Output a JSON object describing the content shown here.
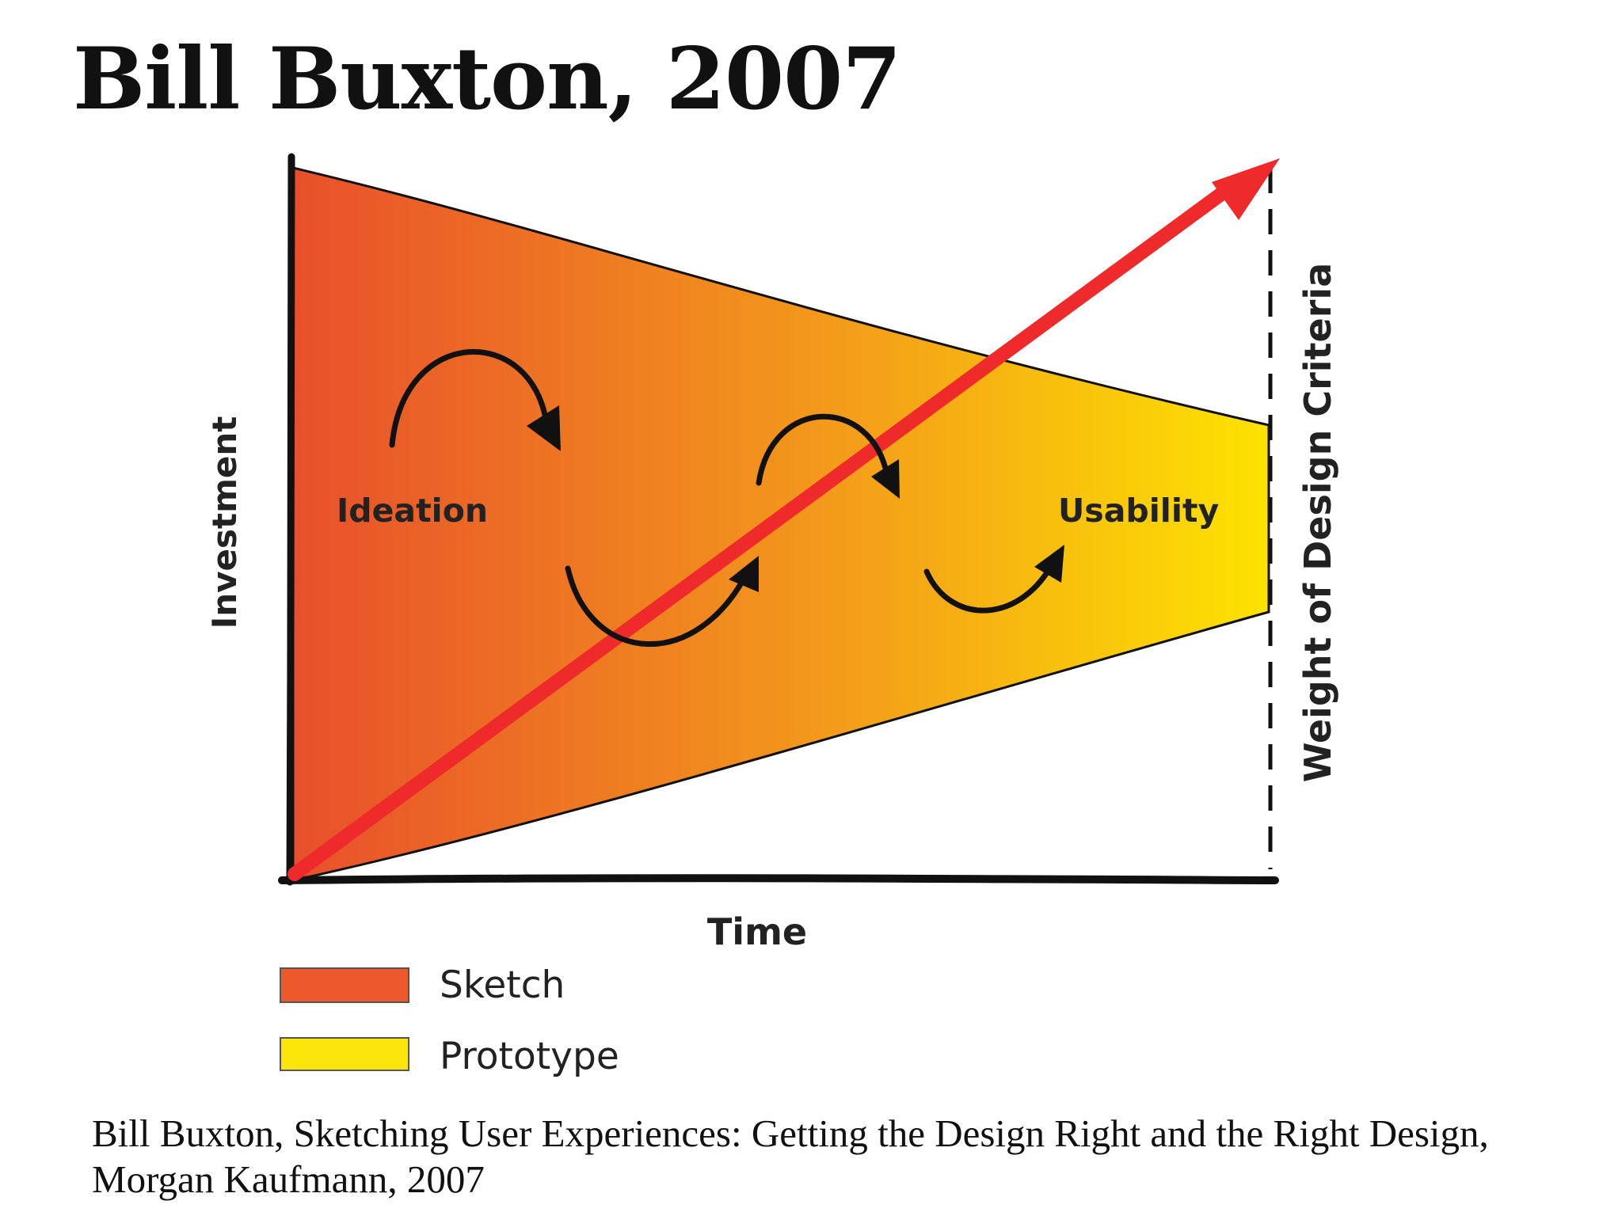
{
  "title": "Bill Buxton, 2007",
  "diagram": {
    "axes": {
      "y_label": "Investment",
      "x_label": "Time",
      "right_label": "Weight of Design Criteria"
    },
    "stage_labels": {
      "left": "Ideation",
      "right": "Usability"
    },
    "legend": [
      {
        "label": "Sketch",
        "color": "#ec5a2b"
      },
      {
        "label": "Prototype",
        "color": "#fbe50a"
      }
    ],
    "colors": {
      "funnel_start": "#e84f2b",
      "funnel_mid": "#f39a1b",
      "funnel_end": "#fde300",
      "trend_arrow": "#ee2a2a",
      "ink": "#111111"
    }
  },
  "citation": "Bill Buxton, Sketching User Experiences: Getting the Design Right and the Right Design, Morgan Kaufmann, 2007"
}
